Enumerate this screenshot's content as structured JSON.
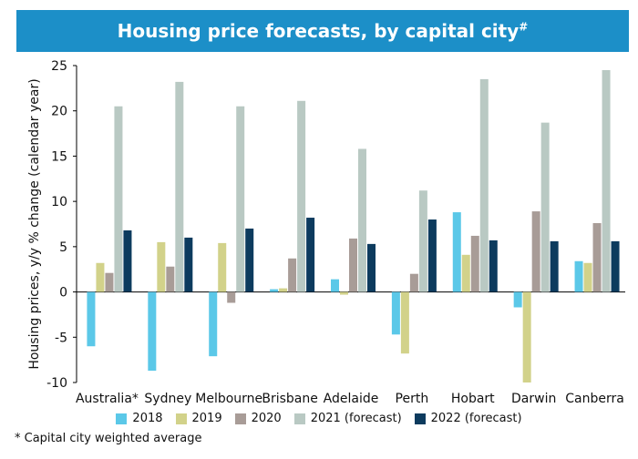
{
  "header": {
    "title": "Housing price forecasts, by capital city",
    "title_mark": "#"
  },
  "footnote": "* Capital city weighted average",
  "colors": {
    "title_bg": "#1c8fc8",
    "2018": "#5bc8e8",
    "2019": "#d2d28a",
    "2020": "#a89c97",
    "2021": "#b9c9c3",
    "2022": "#0d3b5e"
  },
  "chart_data": {
    "type": "bar",
    "title": "Housing price forecasts, by capital city#",
    "ylabel": "Housing prices, y/y % change (calendar year)",
    "xlabel": "",
    "ylim": [
      -10,
      25
    ],
    "yticks": [
      -10,
      -5,
      0,
      5,
      10,
      15,
      20,
      25
    ],
    "grid": false,
    "legend_position": "bottom",
    "categories": [
      "Australia*",
      "Sydney",
      "Melbourne",
      "Brisbane",
      "Adelaide",
      "Perth",
      "Hobart",
      "Darwin",
      "Canberra"
    ],
    "series": [
      {
        "name": "2018",
        "values": [
          -6.0,
          -8.7,
          -7.1,
          0.3,
          1.4,
          -4.7,
          8.8,
          -1.7,
          3.4
        ]
      },
      {
        "name": "2019",
        "values": [
          3.2,
          5.5,
          5.4,
          0.4,
          -0.3,
          -6.8,
          4.1,
          -10.0,
          3.2
        ]
      },
      {
        "name": "2020",
        "values": [
          2.1,
          2.8,
          -1.2,
          3.7,
          5.9,
          2.0,
          6.2,
          8.9,
          7.6
        ]
      },
      {
        "name": "2021 (forecast)",
        "values": [
          20.5,
          23.2,
          20.5,
          21.1,
          15.8,
          11.2,
          23.5,
          18.7,
          24.5
        ]
      },
      {
        "name": "2022 (forecast)",
        "values": [
          6.8,
          6.0,
          7.0,
          8.2,
          5.3,
          8.0,
          5.7,
          5.6,
          5.6
        ]
      }
    ]
  }
}
